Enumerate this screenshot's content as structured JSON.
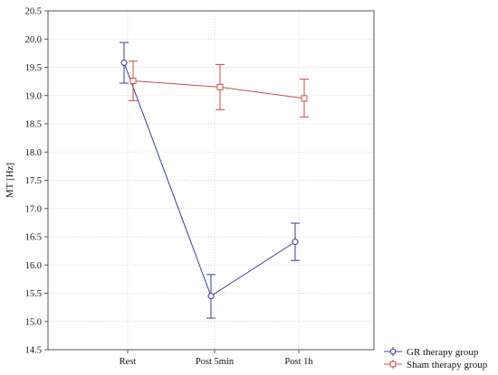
{
  "chart_data": {
    "type": "line",
    "title": "",
    "xlabel": "",
    "ylabel": "MT [Hz]",
    "categories": [
      "Rest",
      "Post 5min",
      "Post 1h"
    ],
    "ylim": [
      14.5,
      20.5
    ],
    "yticks": [
      14.5,
      15.0,
      15.5,
      16.0,
      16.5,
      17.0,
      17.5,
      18.0,
      18.5,
      19.0,
      19.5,
      20.0,
      20.5
    ],
    "ytick_labels": [
      "14.5",
      "15.0",
      "15.5",
      "16.0",
      "16.5",
      "17.0",
      "17.5",
      "18.0",
      "18.5",
      "19.0",
      "19.5",
      "20.0",
      "20.5"
    ],
    "grid": true,
    "legend_position": "bottom-right outside",
    "series": [
      {
        "name": "GR therapy group",
        "color": "#3a3d8f",
        "marker": "circle",
        "values": [
          19.58,
          15.45,
          16.41
        ],
        "error_low": [
          19.22,
          15.06,
          16.08
        ],
        "error_high": [
          19.94,
          15.83,
          16.74
        ]
      },
      {
        "name": "Sham therapy group",
        "color": "#c0504d",
        "marker": "square",
        "values": [
          19.26,
          19.15,
          18.95
        ],
        "error_low": [
          18.91,
          18.75,
          18.62
        ],
        "error_high": [
          19.61,
          19.55,
          19.29
        ]
      }
    ]
  }
}
